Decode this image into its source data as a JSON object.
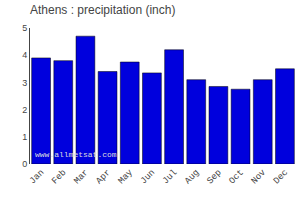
{
  "chart_data": {
    "type": "bar",
    "title": "Athens : precipitation (inch)",
    "categories": [
      "Jan",
      "Feb",
      "Mar",
      "Apr",
      "May",
      "Jun",
      "Jul",
      "Aug",
      "Sep",
      "Oct",
      "Nov",
      "Dec"
    ],
    "values": [
      3.9,
      3.8,
      4.7,
      3.4,
      3.75,
      3.35,
      4.2,
      3.1,
      2.85,
      2.75,
      3.1,
      3.5
    ],
    "color": "#0000dd",
    "ylim": [
      0,
      5
    ],
    "yticks": [
      0,
      1,
      2,
      3,
      4,
      5
    ],
    "grid": false,
    "annotations": [
      "www.allmetsat.com"
    ]
  }
}
